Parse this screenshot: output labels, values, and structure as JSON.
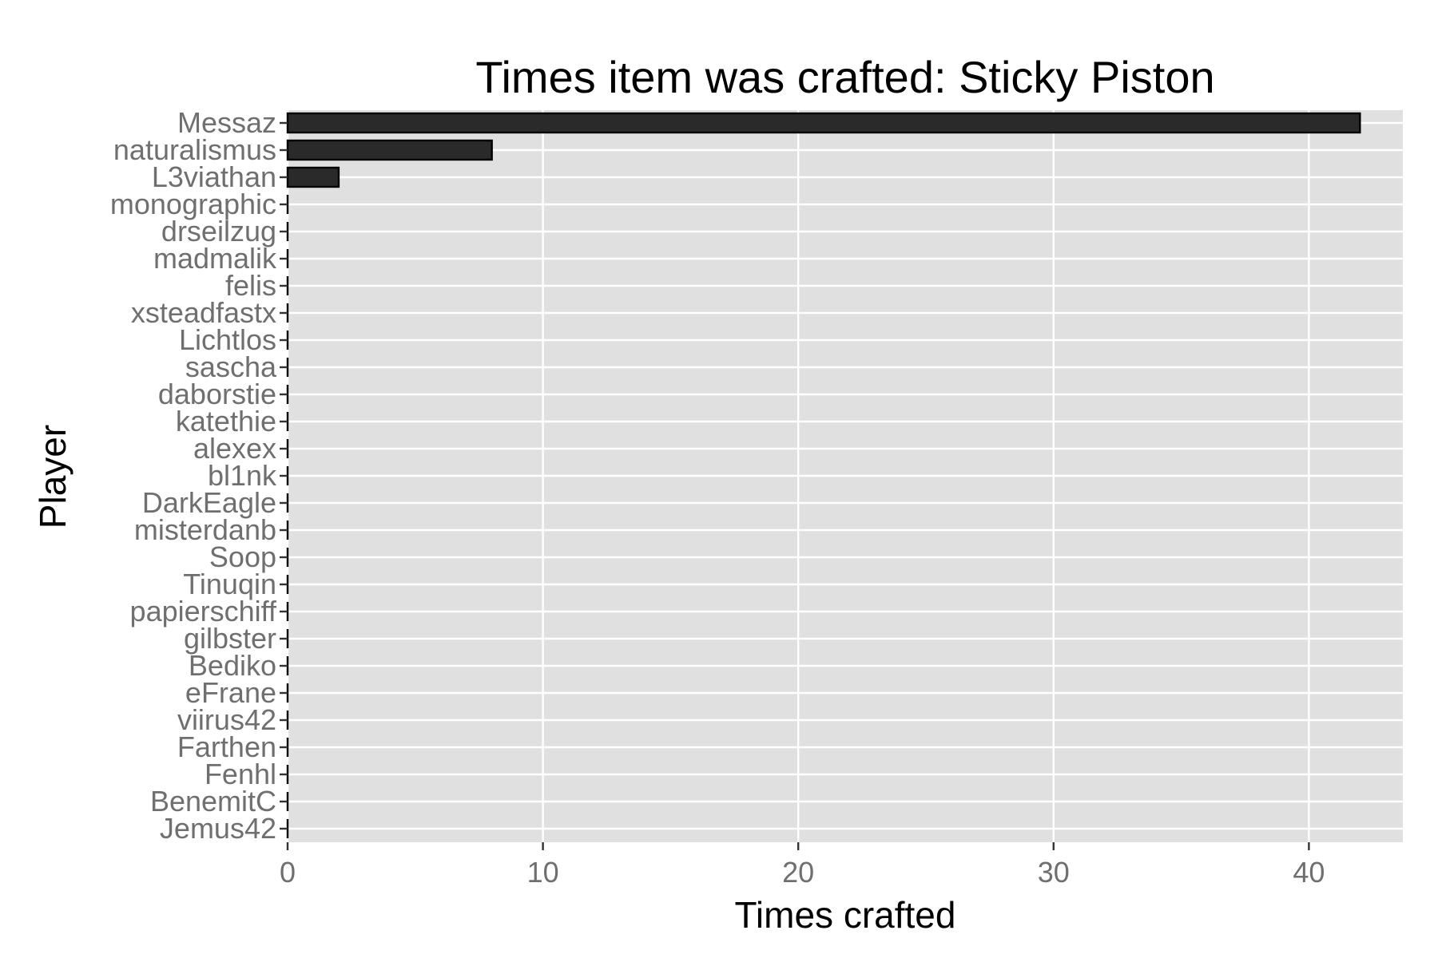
{
  "chart_data": {
    "type": "bar",
    "orientation": "horizontal",
    "title": "Times item was crafted: Sticky Piston",
    "xlabel": "Times crafted",
    "ylabel": "Player",
    "categories": [
      "Messaz",
      "naturalismus",
      "L3viathan",
      "monographic",
      "drseilzug",
      "madmalik",
      "felis",
      "xsteadfastx",
      "Lichtlos",
      "sascha",
      "daborstie",
      "katethie",
      "alexex",
      "bl1nk",
      "DarkEagle",
      "misterdanb",
      "Soop",
      "Tinuqin",
      "papierschiff",
      "gilbster",
      "Bediko",
      "eFrane",
      "viirus42",
      "Farthen",
      "Fenhl",
      "BenemitC",
      "Jemus42"
    ],
    "values": [
      42,
      8,
      2,
      0,
      0,
      0,
      0,
      0,
      0,
      0,
      0,
      0,
      0,
      0,
      0,
      0,
      0,
      0,
      0,
      0,
      0,
      0,
      0,
      0,
      0,
      0,
      0
    ],
    "xlim": [
      0,
      43.68
    ],
    "xticks": [
      0,
      10,
      20,
      30,
      40
    ],
    "grid": true,
    "colors": {
      "panel_background": "#e0e0e0",
      "grid": "#ffffff",
      "bar_fill": "#2a2a2a",
      "bar_stroke": "#000000",
      "tick_label": "#6f6f6f",
      "axis_title": "#000000"
    }
  }
}
